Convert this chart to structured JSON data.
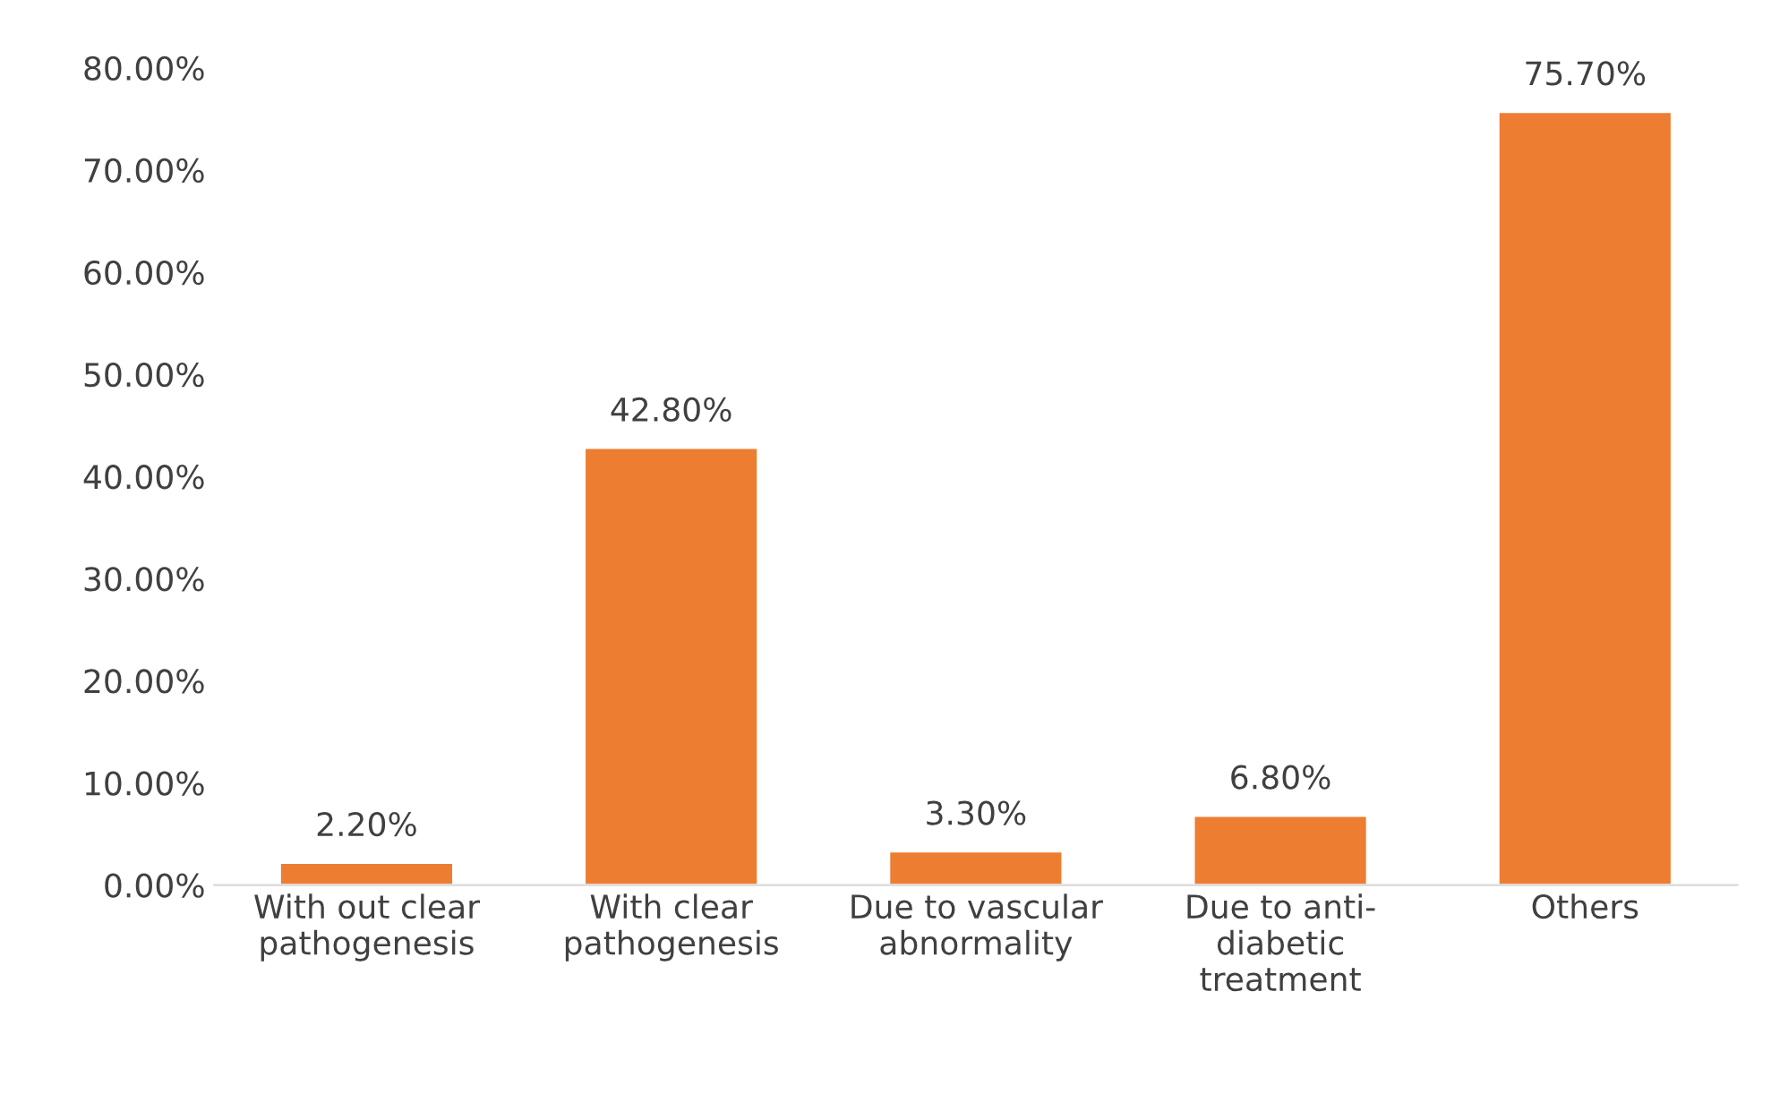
{
  "chart_data": {
    "type": "bar",
    "categories": [
      "With out clear\npathogenesis",
      "With clear\npathogenesis",
      "Due to vascular\nabnormality",
      "Due to anti-\ndiabetic\ntreatment",
      "Others"
    ],
    "values": [
      2.2,
      42.8,
      3.3,
      6.8,
      75.7
    ],
    "value_labels": [
      "2.20%",
      "42.80%",
      "3.30%",
      "6.80%",
      "75.70%"
    ],
    "color": "#ed7d31",
    "ylim": [
      0,
      80
    ],
    "yticks": [
      {
        "value": 0,
        "label": "0.00%"
      },
      {
        "value": 10,
        "label": "10.00%"
      },
      {
        "value": 20,
        "label": "20.00%"
      },
      {
        "value": 30,
        "label": "30.00%"
      },
      {
        "value": 40,
        "label": "40.00%"
      },
      {
        "value": 50,
        "label": "50.00%"
      },
      {
        "value": 60,
        "label": "60.00%"
      },
      {
        "value": 70,
        "label": "70.00%"
      },
      {
        "value": 80,
        "label": "80.00%"
      }
    ],
    "grid": false,
    "legend": false
  }
}
